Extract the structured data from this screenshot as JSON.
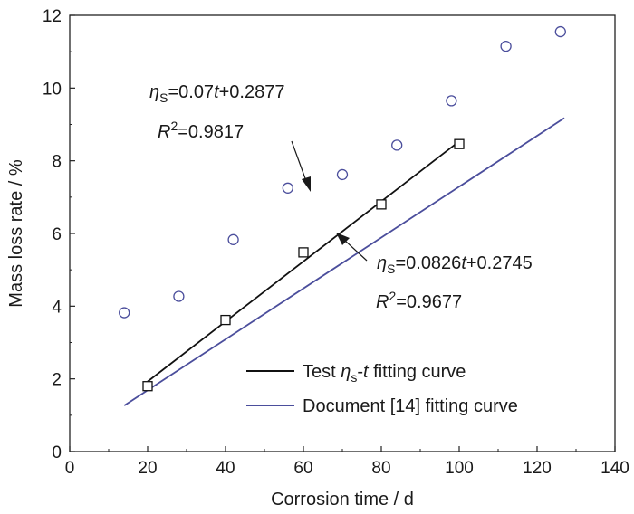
{
  "chart_data": {
    "type": "scatter",
    "xlabel": "Corrosion time / d",
    "ylabel": "Mass loss rate / %",
    "xlim": [
      0,
      140
    ],
    "ylim": [
      0,
      12
    ],
    "xticks": [
      "0",
      "20",
      "40",
      "60",
      "80",
      "100",
      "120",
      "140"
    ],
    "yticks": [
      "0",
      "2",
      "4",
      "6",
      "8",
      "10",
      "12"
    ],
    "grid": false,
    "legend_position": "bottom-right",
    "series": [
      {
        "marker": "square",
        "color": "#111111",
        "x": [
          20,
          40,
          60,
          80,
          100
        ],
        "y": [
          1.8,
          3.62,
          5.48,
          6.8,
          8.46
        ]
      },
      {
        "marker": "circle",
        "color": "#4b4e9c",
        "x": [
          14,
          28,
          42,
          56,
          70,
          84,
          98,
          112,
          126
        ],
        "y": [
          3.82,
          4.27,
          5.83,
          7.25,
          7.62,
          8.43,
          9.65,
          11.15,
          11.55
        ]
      }
    ],
    "fit_lines": [
      {
        "name": "Test ηs-t fitting curve",
        "color": "#111111",
        "slope": 0.0826,
        "intercept": 0.2745,
        "x_range": [
          20,
          100
        ]
      },
      {
        "name": "Document [14] fitting curve",
        "color": "#4b4e9c",
        "slope": 0.07,
        "intercept": 0.2877,
        "x_range": [
          14,
          127
        ]
      }
    ],
    "annotations": [
      {
        "eq_symbol": "η",
        "eq_sub": "S",
        "eq_mid": "=0.07",
        "eq_var": "t",
        "eq_rest": "+0.2877",
        "r_symbol": "R",
        "r_sup": "2",
        "r_rest": "=0.9817"
      },
      {
        "eq_symbol": "η",
        "eq_sub": "S",
        "eq_mid": "=0.0826",
        "eq_var": "t",
        "eq_rest": "+0.2745",
        "r_symbol": "R",
        "r_sup": "2",
        "r_rest": "=0.9677"
      }
    ],
    "legend": [
      {
        "prefix": "Test ",
        "symbol": "η",
        "sub": "s",
        "dash": "-",
        "var": "t",
        "suffix": " fitting curve",
        "color": "#111111"
      },
      {
        "text": "Document [14] fitting curve",
        "color": "#4b4e9c"
      }
    ]
  }
}
